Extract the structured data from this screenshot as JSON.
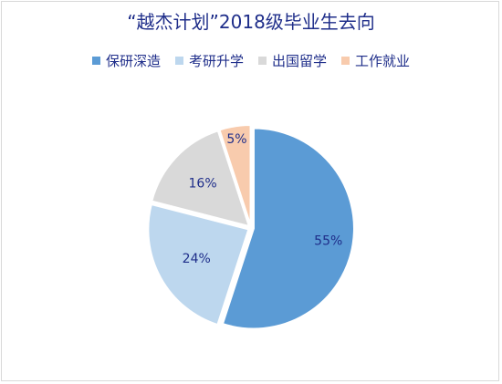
{
  "chart_data": {
    "type": "pie",
    "title": "“越杰计划”2018级毕业生去向",
    "legend_position": "top",
    "categories": [
      "保研深造",
      "考研升学",
      "出国留学",
      "工作就业"
    ],
    "values": [
      55,
      24,
      16,
      5
    ],
    "labels": [
      "55%",
      "24%",
      "16%",
      "5%"
    ],
    "colors": [
      "#5b9bd5",
      "#bdd7ee",
      "#d9d9d9",
      "#f8cbad"
    ]
  }
}
